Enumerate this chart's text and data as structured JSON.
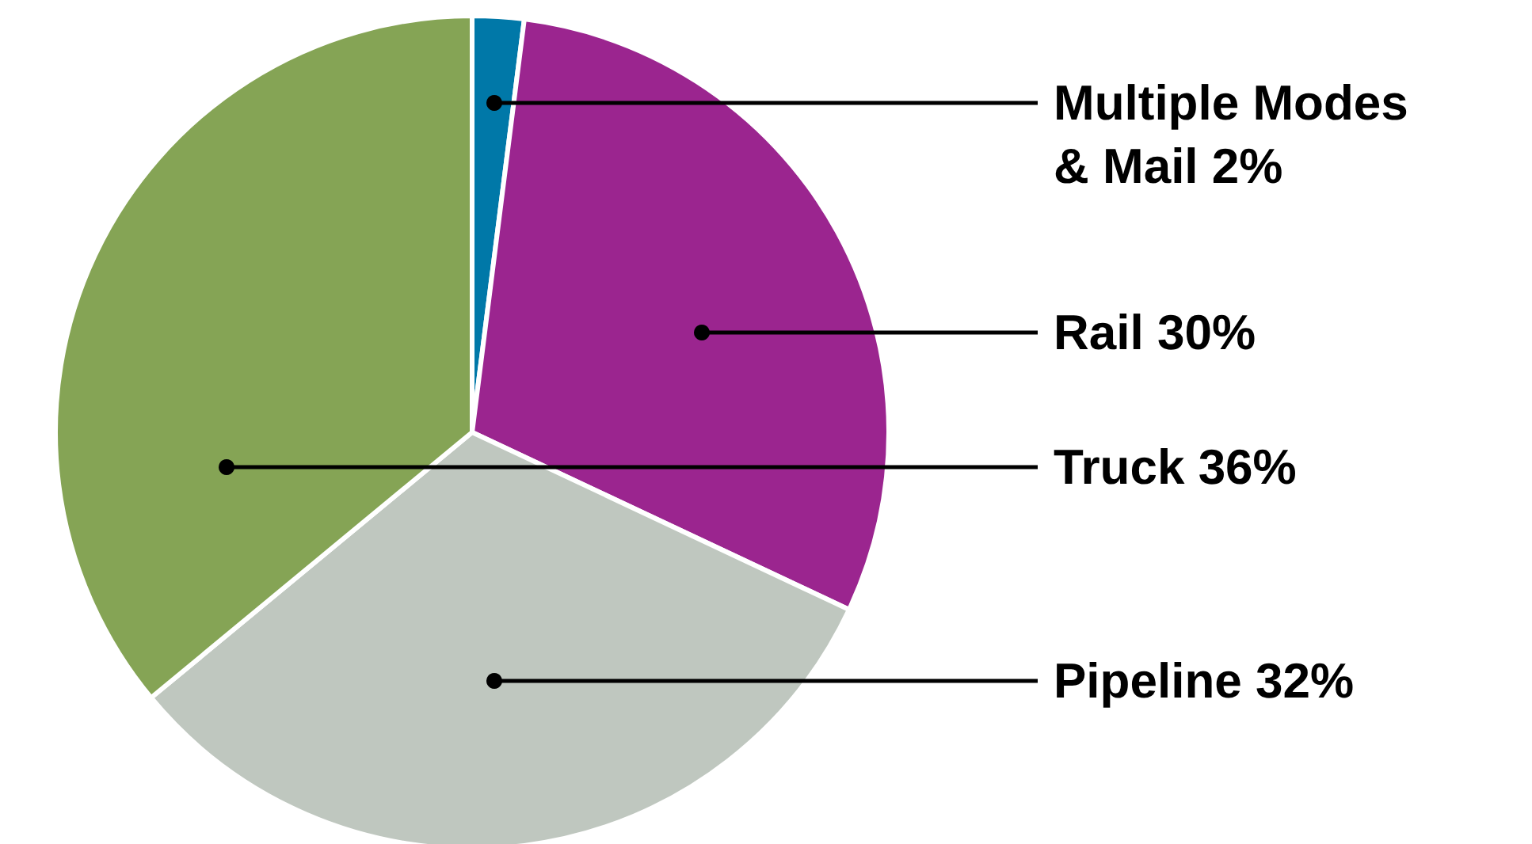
{
  "chart_data": {
    "type": "pie",
    "categories": [
      "Multiple Modes & Mail",
      "Rail",
      "Pipeline",
      "Truck"
    ],
    "values": [
      2,
      30,
      32,
      36
    ],
    "colors": [
      "#0078a8",
      "#9b258f",
      "#bfc7bf",
      "#85a455"
    ],
    "value_labels": [
      "2%",
      "30%",
      "32%",
      "36%"
    ],
    "legend": false
  }
}
